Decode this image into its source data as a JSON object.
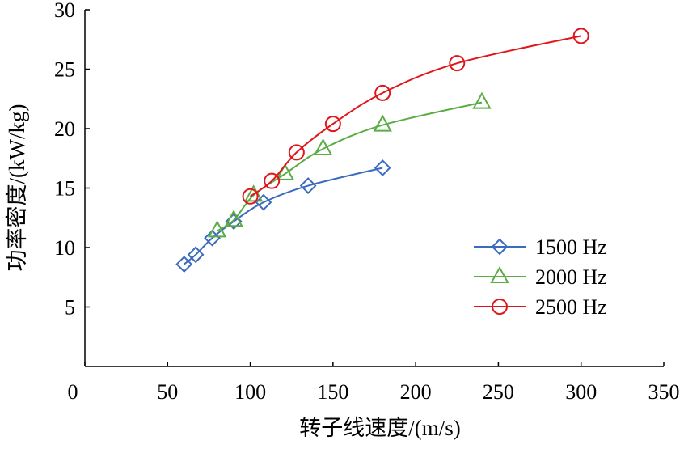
{
  "chart_data": {
    "type": "line",
    "xlabel": "转子线速度/(m/s)",
    "ylabel": "功率密度/(kW/kg)",
    "xlim": [
      0,
      350
    ],
    "ylim": [
      0,
      30
    ],
    "xticks": [
      "0",
      "50",
      "100",
      "150",
      "200",
      "250",
      "300",
      "350"
    ],
    "yticks": [
      "5",
      "10",
      "15",
      "20",
      "25",
      "30"
    ],
    "grid": false,
    "legend_position": "bottom-right",
    "series": [
      {
        "name": "1500 Hz",
        "color": "#3a6bbf",
        "marker": "diamond",
        "x": [
          60,
          67,
          77,
          90,
          108,
          135,
          180
        ],
        "y": [
          8.6,
          9.4,
          10.8,
          12.2,
          13.8,
          15.2,
          16.7
        ]
      },
      {
        "name": "2000 Hz",
        "color": "#5aac44",
        "marker": "triangle",
        "x": [
          80,
          90,
          102,
          121,
          144,
          180,
          240
        ],
        "y": [
          11.4,
          12.3,
          14.4,
          16.2,
          18.3,
          20.3,
          22.2
        ]
      },
      {
        "name": "2500 Hz",
        "color": "#e0161b",
        "marker": "circle",
        "x": [
          100,
          113,
          128,
          150,
          180,
          225,
          300
        ],
        "y": [
          14.3,
          15.6,
          18.0,
          20.4,
          23.0,
          25.5,
          27.8
        ]
      }
    ]
  }
}
